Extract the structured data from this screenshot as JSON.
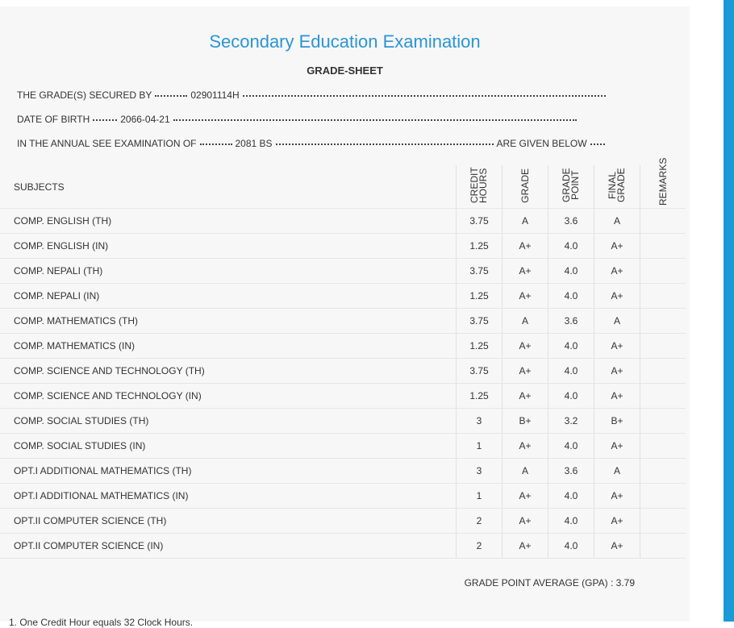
{
  "header": {
    "title": "Secondary Education Examination",
    "subtitle": "GRADE-SHEET"
  },
  "info": [
    {
      "label": "THE GRADE(S) SECURED BY",
      "value": "02901114H"
    },
    {
      "label": "DATE OF BIRTH",
      "value": "2066-04-21"
    },
    {
      "label": "IN THE ANNUAL SEE EXAMINATION OF",
      "value": "2081 BS",
      "suffix": "ARE GIVEN BELOW"
    }
  ],
  "table": {
    "columns": [
      "SUBJECTS",
      "CREDIT HOURS",
      "GRADE",
      "GRADE POINT",
      "FINAL GRADE",
      "REMARKS"
    ],
    "rows": [
      [
        "COMP. ENGLISH (TH)",
        "3.75",
        "A",
        "3.6",
        "A"
      ],
      [
        "COMP. ENGLISH (IN)",
        "1.25",
        "A+",
        "4.0",
        "A+"
      ],
      [
        "COMP. NEPALI (TH)",
        "3.75",
        "A+",
        "4.0",
        "A+"
      ],
      [
        "COMP. NEPALI (IN)",
        "1.25",
        "A+",
        "4.0",
        "A+"
      ],
      [
        "COMP. MATHEMATICS (TH)",
        "3.75",
        "A",
        "3.6",
        "A"
      ],
      [
        "COMP. MATHEMATICS (IN)",
        "1.25",
        "A+",
        "4.0",
        "A+"
      ],
      [
        "COMP. SCIENCE AND TECHNOLOGY (TH)",
        "3.75",
        "A+",
        "4.0",
        "A+"
      ],
      [
        "COMP. SCIENCE AND TECHNOLOGY (IN)",
        "1.25",
        "A+",
        "4.0",
        "A+"
      ],
      [
        "COMP. SOCIAL STUDIES (TH)",
        "3",
        "B+",
        "3.2",
        "B+"
      ],
      [
        "COMP. SOCIAL STUDIES (IN)",
        "1",
        "A+",
        "4.0",
        "A+"
      ],
      [
        "OPT.I ADDITIONAL MATHEMATICS (TH)",
        "3",
        "A",
        "3.6",
        "A"
      ],
      [
        "OPT.I ADDITIONAL MATHEMATICS (IN)",
        "1",
        "A+",
        "4.0",
        "A+"
      ],
      [
        "OPT.II COMPUTER SCIENCE (TH)",
        "2",
        "A+",
        "4.0",
        "A+"
      ],
      [
        "OPT.II COMPUTER SCIENCE (IN)",
        "2",
        "A+",
        "4.0",
        "A+"
      ]
    ]
  },
  "gpa": {
    "label": "GRADE POINT AVERAGE (GPA) :",
    "value": "3.79"
  },
  "footnote": "1. One Credit Hour equals 32 Clock Hours."
}
